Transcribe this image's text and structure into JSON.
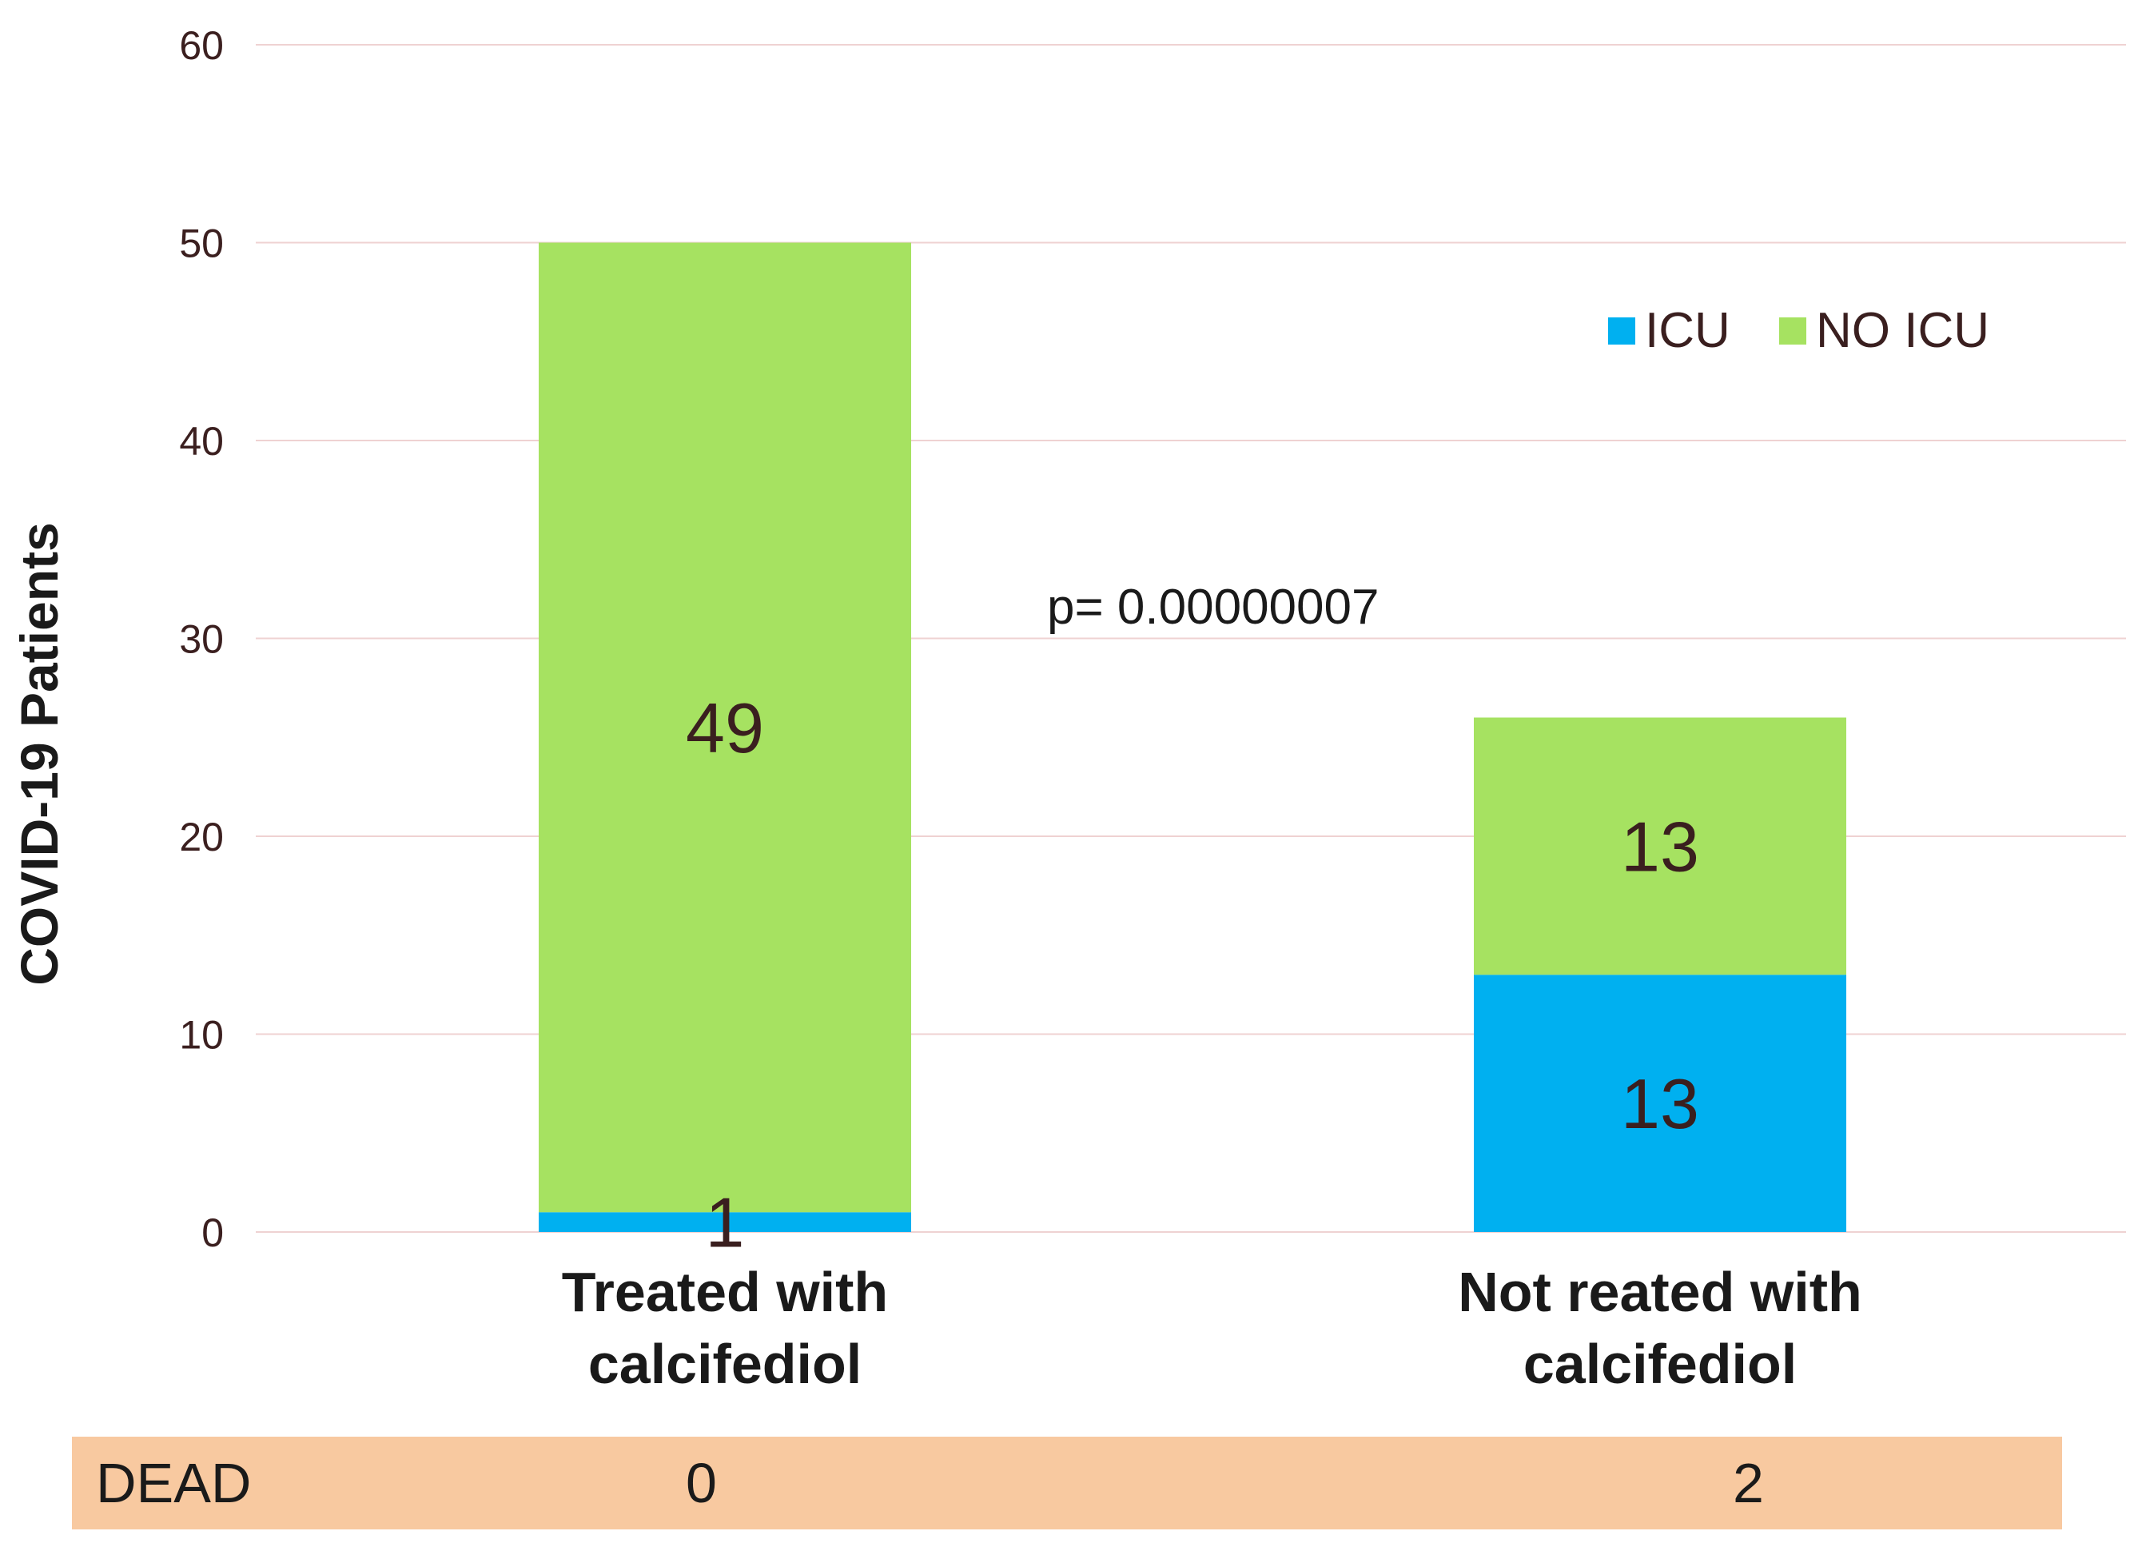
{
  "chart_data": {
    "type": "bar",
    "stacked": true,
    "title": "",
    "xlabel": "",
    "ylabel": "COVID-19 Patients",
    "ylim": [
      0,
      60
    ],
    "yticks": [
      0,
      10,
      20,
      30,
      40,
      50,
      60
    ],
    "categories": [
      "Treated with calcifediol",
      "Not reated with calcifediol"
    ],
    "category_lines": [
      [
        "Treated with",
        "calcifediol"
      ],
      [
        "Not reated with",
        "calcifediol"
      ]
    ],
    "series": [
      {
        "name": "ICU",
        "color": "#00b0f0",
        "values": [
          1,
          13
        ]
      },
      {
        "name": "NO ICU",
        "color": "#a6e261",
        "values": [
          49,
          13
        ]
      }
    ],
    "legend_position": "top-right",
    "annotation": "p= 0.00000007",
    "grid": true
  },
  "dead_row": {
    "label": "DEAD",
    "values": [
      "0",
      "2"
    ],
    "color": "#f8c9a0"
  }
}
